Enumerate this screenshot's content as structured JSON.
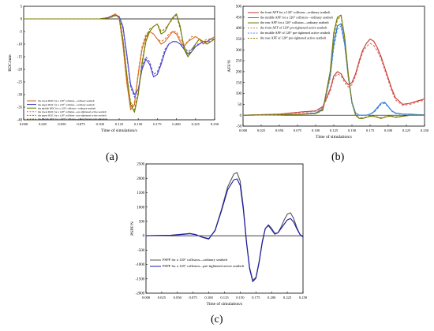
{
  "figure": {
    "panel_labels": [
      "(a)",
      "(b)",
      "(c)"
    ]
  },
  "chart_data": [
    {
      "id": "a",
      "type": "line",
      "xlabel": "Time of simulation/s",
      "ylabel": "RDC/mm",
      "xlim": [
        0,
        0.25
      ],
      "ylim": [
        -40,
        5
      ],
      "x_ticks": [
        "0.000",
        "0.025",
        "0.050",
        "0.075",
        "0.100",
        "0.125",
        "0.150",
        "0.175",
        "0.200",
        "0.225",
        "0.250"
      ],
      "y_ticks": [
        "5",
        "0",
        "-5",
        "-10",
        "-15",
        "-20",
        "-25",
        "-30",
        "-35",
        "-40"
      ],
      "legend_position": "bottom-left",
      "x": [
        0.0,
        0.1,
        0.11,
        0.115,
        0.12,
        0.125,
        0.13,
        0.135,
        0.14,
        0.145,
        0.15,
        0.155,
        0.16,
        0.165,
        0.17,
        0.175,
        0.18,
        0.185,
        0.19,
        0.195,
        0.2,
        0.205,
        0.21,
        0.215,
        0.22,
        0.225,
        0.23,
        0.235,
        0.24,
        0.245,
        0.25
      ],
      "series": [
        {
          "name": "the lower RDC for a 120° collision—ordinary seatbelt",
          "color": "#d2691e",
          "dash": "solid",
          "values": [
            0,
            0,
            0.5,
            1.2,
            2.0,
            0.5,
            -10,
            -25,
            -36,
            -34,
            -22,
            -12,
            -7,
            -5,
            -6,
            -8,
            -10,
            -9,
            -7,
            -5,
            -6,
            -9,
            -11,
            -9,
            -8,
            -7,
            -8,
            -10,
            -9,
            -8,
            -7
          ]
        },
        {
          "name": "the upper RDC for a 120° collision—ordinary seatbelt",
          "color": "#3b3bd0",
          "dash": "solid",
          "values": [
            0,
            0,
            0.5,
            1.0,
            1.5,
            1.0,
            -3,
            -14,
            -26,
            -30,
            -28,
            -20,
            -16,
            -18,
            -23,
            -22,
            -18,
            -13,
            -10,
            -9,
            -9,
            -10,
            -12,
            -14,
            -13,
            -11,
            -10,
            -9,
            -9,
            -8,
            -8
          ]
        },
        {
          "name": "the middle RDC for a 120° collision—ordinary seatbelt",
          "color": "#6b7a00",
          "dash": "solid",
          "values": [
            0,
            0,
            0.3,
            0.8,
            1.5,
            0.8,
            -8,
            -22,
            -34,
            -37,
            -30,
            -18,
            -9,
            -5,
            -3,
            -2,
            -6,
            -5,
            -2,
            0.5,
            2,
            -3,
            -12,
            -15,
            -13,
            -10,
            -8,
            -9,
            -10,
            -9,
            -8
          ]
        },
        {
          "name": "the lower RDC for a 120° collision—pre-tightened active seatbelt",
          "color": "#e07b39",
          "dash": "dash",
          "values": [
            0,
            0,
            0.4,
            1.0,
            1.8,
            0.2,
            -11,
            -26,
            -35,
            -33,
            -21,
            -11,
            -6,
            -5,
            -6,
            -8,
            -9,
            -8,
            -6,
            -5,
            -5,
            -8,
            -10,
            -9,
            -7,
            -7,
            -8,
            -9,
            -8,
            -8,
            -7
          ]
        },
        {
          "name": "the upper RDC for a 120° collision—pre-tightened active seatbelt",
          "color": "#6a5acd",
          "dash": "dash",
          "values": [
            0,
            0,
            0.4,
            0.9,
            1.4,
            0.9,
            -4,
            -15,
            -27,
            -31,
            -28,
            -19,
            -15,
            -17,
            -22,
            -21,
            -17,
            -12,
            -10,
            -9,
            -9,
            -10,
            -11,
            -13,
            -12,
            -10,
            -10,
            -9,
            -9,
            -8,
            -8
          ]
        },
        {
          "name": "the middle RDC for a 120° collision—pre-tightened active seatbelt",
          "color": "#8b7d00",
          "dash": "dash",
          "values": [
            0,
            0,
            0.3,
            0.7,
            1.3,
            0.6,
            -9,
            -23,
            -33,
            -36,
            -29,
            -17,
            -8,
            -4,
            -3,
            -2,
            -5,
            -4,
            -2,
            0,
            1.5,
            -4,
            -11,
            -14,
            -12,
            -10,
            -8,
            -9,
            -9,
            -9,
            -8
          ]
        }
      ]
    },
    {
      "id": "b",
      "type": "line",
      "xlabel": "Time of simulation/s",
      "ylabel": "AFF/N",
      "xlim": [
        0,
        0.25
      ],
      "ylim": [
        -50,
        500
      ],
      "x_ticks": [
        "0.000",
        "0.025",
        "0.050",
        "0.075",
        "0.100",
        "0.125",
        "0.150",
        "0.175",
        "0.200",
        "0.225",
        "0.250"
      ],
      "y_ticks": [
        "500",
        "450",
        "400",
        "350",
        "300",
        "250",
        "200",
        "150",
        "100",
        "50",
        "0",
        "-50"
      ],
      "legend_position": "top-left",
      "x": [
        0.0,
        0.05,
        0.08,
        0.1,
        0.11,
        0.12,
        0.125,
        0.13,
        0.135,
        0.14,
        0.145,
        0.15,
        0.155,
        0.16,
        0.165,
        0.17,
        0.175,
        0.18,
        0.185,
        0.19,
        0.195,
        0.2,
        0.205,
        0.21,
        0.22,
        0.23,
        0.24,
        0.25
      ],
      "series": [
        {
          "name": "the front AFF for a 120° collision—ordinary seatbelt",
          "color": "#c0392b",
          "dash": "solid",
          "values": [
            0,
            5,
            15,
            20,
            40,
            120,
            180,
            200,
            190,
            160,
            140,
            150,
            190,
            250,
            300,
            330,
            350,
            340,
            310,
            270,
            220,
            170,
            120,
            80,
            50,
            55,
            65,
            75
          ]
        },
        {
          "name": "the middle AFF for a 120° collision—ordinary seatbelt",
          "color": "#1f6fd6",
          "dash": "solid",
          "values": [
            0,
            2,
            5,
            10,
            30,
            180,
            330,
            410,
            420,
            330,
            180,
            60,
            10,
            0,
            0,
            0,
            5,
            15,
            35,
            55,
            60,
            40,
            20,
            10,
            5,
            5,
            3,
            2
          ]
        },
        {
          "name": "the rear AFF for a 120° collision—ordinary seatbelt",
          "color": "#6b7a00",
          "dash": "solid",
          "values": [
            0,
            2,
            4,
            8,
            25,
            200,
            380,
            450,
            460,
            360,
            190,
            60,
            0,
            -15,
            -15,
            -10,
            -5,
            -5,
            -10,
            -15,
            -10,
            -5,
            -5,
            -10,
            -5,
            0,
            0,
            0
          ]
        },
        {
          "name": "the front AFF of 120° pre-tightened active seatbelt",
          "color": "#e06666",
          "dash": "dash",
          "values": [
            0,
            5,
            12,
            18,
            35,
            110,
            170,
            190,
            180,
            150,
            130,
            140,
            180,
            240,
            290,
            315,
            330,
            320,
            295,
            260,
            210,
            160,
            110,
            70,
            45,
            50,
            60,
            70
          ]
        },
        {
          "name": "the middle AFF of 120° pre-tightened active seatbelt",
          "color": "#4a90e2",
          "dash": "dash",
          "values": [
            0,
            2,
            5,
            10,
            28,
            170,
            310,
            395,
            410,
            320,
            170,
            55,
            10,
            0,
            0,
            0,
            5,
            12,
            30,
            50,
            55,
            38,
            18,
            8,
            4,
            4,
            3,
            2
          ]
        },
        {
          "name": "the rear AFF of 120° pre-tightened active seatbelt",
          "color": "#8b7d00",
          "dash": "dash",
          "values": [
            0,
            2,
            4,
            7,
            22,
            190,
            360,
            440,
            455,
            350,
            180,
            55,
            0,
            -12,
            -12,
            -8,
            -4,
            -4,
            -8,
            -12,
            -8,
            -4,
            -4,
            -8,
            -4,
            0,
            0,
            0
          ]
        }
      ]
    },
    {
      "id": "c",
      "type": "line",
      "xlabel": "Time of simulation/s",
      "ylabel": "PSPF/N",
      "xlim": [
        0,
        0.25
      ],
      "ylim": [
        -2000,
        2500
      ],
      "x_ticks": [
        "0.000",
        "0.025",
        "0.050",
        "0.075",
        "0.100",
        "0.125",
        "0.150",
        "0.175",
        "0.200",
        "0.225",
        "0.250"
      ],
      "y_ticks": [
        "2500",
        "2000",
        "1500",
        "1000",
        "500",
        "0",
        "-500",
        "-1000",
        "-1500",
        "-2000"
      ],
      "legend_position": "bottom-left",
      "x": [
        0.0,
        0.04,
        0.06,
        0.07,
        0.08,
        0.09,
        0.1,
        0.11,
        0.12,
        0.13,
        0.14,
        0.145,
        0.15,
        0.155,
        0.16,
        0.165,
        0.17,
        0.175,
        0.18,
        0.185,
        0.19,
        0.195,
        0.2,
        0.205,
        0.21,
        0.215,
        0.22,
        0.225,
        0.23,
        0.235,
        0.24,
        0.245,
        0.25
      ],
      "series": [
        {
          "name": "PSPF for a 120° collision—ordinary seatbelt",
          "color": "#555555",
          "dash": "solid",
          "values": [
            0,
            20,
            60,
            80,
            40,
            -60,
            -120,
            200,
            900,
            1700,
            2150,
            2200,
            1900,
            1000,
            -200,
            -1100,
            -1550,
            -1450,
            -900,
            -200,
            250,
            350,
            200,
            50,
            100,
            300,
            550,
            750,
            800,
            600,
            300,
            50,
            -50
          ]
        },
        {
          "name": "PSPF for a 120° collision—pre-tightened active seatbelt",
          "color": "#1a1aa6",
          "dash": "solid",
          "values": [
            0,
            15,
            50,
            70,
            30,
            -50,
            -100,
            180,
            850,
            1600,
            1950,
            1980,
            1750,
            900,
            -250,
            -1150,
            -1600,
            -1480,
            -950,
            -250,
            250,
            380,
            250,
            80,
            100,
            250,
            400,
            550,
            600,
            480,
            250,
            50,
            -40
          ]
        }
      ]
    }
  ]
}
